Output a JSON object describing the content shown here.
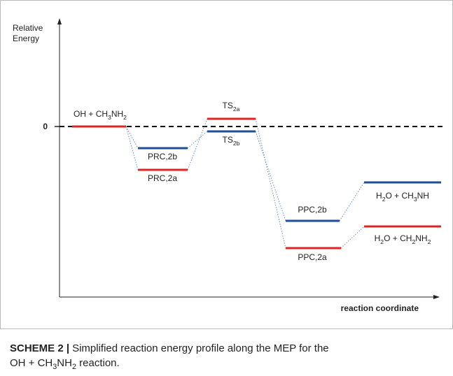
{
  "axis": {
    "y_label": [
      "Relative",
      "Energy"
    ],
    "zero": "0",
    "x_label": "reaction coordinate"
  },
  "levels": [
    {
      "color": "red",
      "label": [
        {
          "t": "OH + CH"
        },
        {
          "s": "3"
        },
        {
          "t": "NH"
        },
        {
          "s": "2"
        }
      ]
    },
    {
      "color": "blue",
      "label": [
        {
          "t": "PRC,2b"
        }
      ]
    },
    {
      "color": "red",
      "label": [
        {
          "t": "PRC,2a"
        }
      ]
    },
    {
      "color": "red",
      "label": [
        {
          "t": "TS"
        },
        {
          "s": "2a"
        }
      ]
    },
    {
      "color": "blue",
      "label": [
        {
          "t": "TS"
        },
        {
          "s": "2b"
        }
      ]
    },
    {
      "color": "blue",
      "label": [
        {
          "t": "PPC,2b"
        }
      ]
    },
    {
      "color": "red",
      "label": [
        {
          "t": "PPC,2a"
        }
      ]
    },
    {
      "color": "blue",
      "label": [
        {
          "t": "H"
        },
        {
          "s": "2"
        },
        {
          "t": "O + CH"
        },
        {
          "s": "3"
        },
        {
          "t": "NH"
        }
      ]
    },
    {
      "color": "red",
      "label": [
        {
          "t": "H"
        },
        {
          "s": "2"
        },
        {
          "t": "O + CH"
        },
        {
          "s": "2"
        },
        {
          "t": "NH"
        },
        {
          "s": "2"
        }
      ]
    }
  ],
  "caption": {
    "label": "SCHEME 2 |",
    "line1": "Simplified reaction energy profile along the MEP for the",
    "line2": [
      {
        "t": "OH + CH"
      },
      {
        "s": "3"
      },
      {
        "t": "NH"
      },
      {
        "s": "2"
      },
      {
        "t": " reaction."
      }
    ]
  }
}
